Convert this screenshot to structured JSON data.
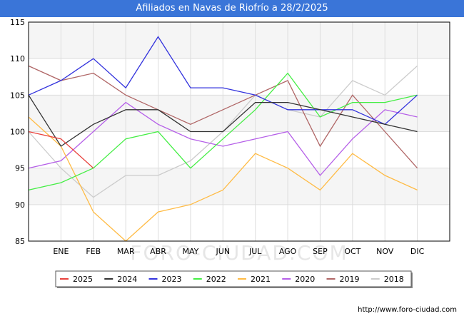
{
  "header": {
    "title": "Afiliados en Navas de Riofrío a 28/2/2025"
  },
  "footer": {
    "url": "http://www.foro-ciudad.com"
  },
  "watermark": "FORO-CIUDAD.COM",
  "chart_data": {
    "type": "line",
    "title": "Afiliados en Navas de Riofrío a 28/2/2025",
    "xlabel": "",
    "ylabel": "",
    "categories": [
      "",
      "ENE",
      "FEB",
      "MAR",
      "ABR",
      "MAY",
      "JUN",
      "JUL",
      "AGO",
      "SEP",
      "OCT",
      "NOV",
      "DIC"
    ],
    "ylim": [
      85,
      115
    ],
    "yticks": [
      85,
      90,
      95,
      100,
      105,
      110,
      115
    ],
    "grid": true,
    "legend_position": "bottom",
    "series": [
      {
        "name": "2025",
        "color": "#e8413c",
        "values": [
          100,
          99,
          95,
          null,
          null,
          null,
          null,
          null,
          null,
          null,
          null,
          null,
          null
        ]
      },
      {
        "name": "2024",
        "color": "#333333",
        "values": [
          105,
          98,
          101,
          103,
          103,
          100,
          100,
          104,
          104,
          103,
          102,
          101,
          100
        ]
      },
      {
        "name": "2023",
        "color": "#3333dd",
        "values": [
          105,
          107,
          110,
          106,
          113,
          106,
          106,
          105,
          103,
          103,
          103,
          101,
          105
        ]
      },
      {
        "name": "2022",
        "color": "#44ee44",
        "values": [
          92,
          93,
          95,
          99,
          100,
          95,
          99,
          103,
          108,
          102,
          104,
          104,
          105
        ]
      },
      {
        "name": "2021",
        "color": "#ffbb44",
        "values": [
          102,
          98,
          89,
          85,
          89,
          90,
          92,
          97,
          95,
          92,
          97,
          94,
          92
        ]
      },
      {
        "name": "2020",
        "color": "#b55fe8",
        "values": [
          95,
          96,
          100,
          104,
          101,
          99,
          98,
          99,
          100,
          94,
          99,
          103,
          102
        ]
      },
      {
        "name": "2019",
        "color": "#b06666",
        "values": [
          109,
          107,
          108,
          105,
          103,
          101,
          103,
          105,
          107,
          98,
          105,
          100,
          95
        ]
      },
      {
        "name": "2018",
        "color": "#cccccc",
        "values": [
          100,
          95,
          91,
          94,
          94,
          96,
          100,
          105,
          103,
          102,
          107,
          105,
          109
        ]
      }
    ]
  }
}
